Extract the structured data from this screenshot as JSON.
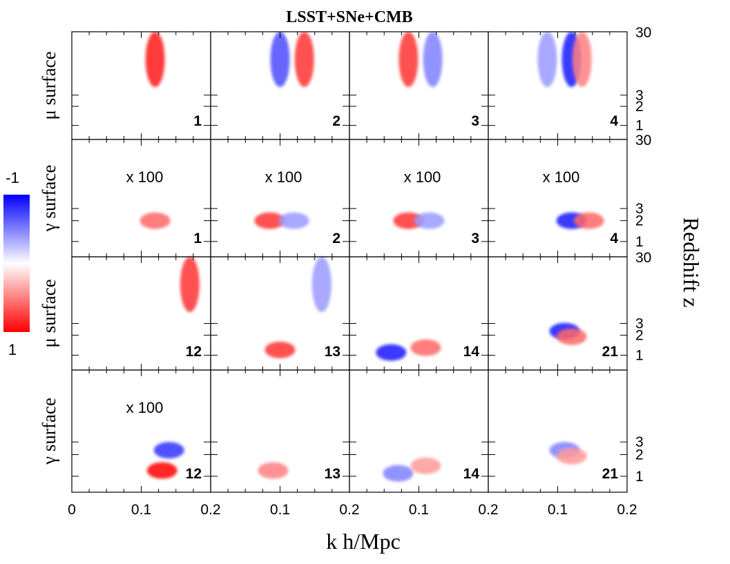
{
  "chart_data": {
    "type": "heatmap",
    "title": "LSST+SNe+CMB",
    "xlabel": "k h/Mpc",
    "ylabel_right": "Redshift z",
    "x_ticks": [
      "0",
      "0.1",
      "0.2",
      "0.1",
      "0.2",
      "0.1",
      "0.2",
      "0.1",
      "0.2"
    ],
    "panel_xlim": [
      0,
      0.2
    ],
    "y_tick_labels": [
      "30",
      "3",
      "2",
      "1"
    ],
    "y_ticks_z": [
      30,
      3,
      2,
      1
    ],
    "colorbar": {
      "min_label": "-1",
      "max_label": "1",
      "range": [
        -1,
        1
      ],
      "low_color": "#0000ff",
      "mid_color": "#ffffff",
      "high_color": "#ff0000"
    },
    "row_labels": [
      "μ surface",
      "γ surface",
      "μ surface",
      "γ surface"
    ],
    "rows": [
      {
        "surface": "μ",
        "panels": [
          {
            "mode": "1",
            "scale": "",
            "features": [
              {
                "k": 0.12,
                "z": 10,
                "amp": 0.9
              }
            ]
          },
          {
            "mode": "2",
            "scale": "",
            "features": [
              {
                "k": 0.1,
                "z": 10,
                "amp": -0.7
              },
              {
                "k": 0.135,
                "z": 10,
                "amp": 0.8
              }
            ]
          },
          {
            "mode": "3",
            "scale": "",
            "features": [
              {
                "k": 0.085,
                "z": 10,
                "amp": 0.8
              },
              {
                "k": 0.12,
                "z": 10,
                "amp": -0.5
              }
            ]
          },
          {
            "mode": "4",
            "scale": "",
            "features": [
              {
                "k": 0.085,
                "z": 10,
                "amp": -0.4
              },
              {
                "k": 0.12,
                "z": 10,
                "amp": -0.9
              },
              {
                "k": 0.135,
                "z": 10,
                "amp": 0.5
              }
            ]
          }
        ]
      },
      {
        "surface": "γ",
        "panels": [
          {
            "mode": "1",
            "scale": "x 100",
            "features": [
              {
                "k": 0.12,
                "z": 2,
                "amp": 0.6
              }
            ]
          },
          {
            "mode": "2",
            "scale": "x 100",
            "features": [
              {
                "k": 0.085,
                "z": 2,
                "amp": 0.8
              },
              {
                "k": 0.12,
                "z": 2,
                "amp": -0.4
              }
            ]
          },
          {
            "mode": "3",
            "scale": "x 100",
            "features": [
              {
                "k": 0.085,
                "z": 2,
                "amp": 0.8
              },
              {
                "k": 0.115,
                "z": 2,
                "amp": -0.4
              }
            ]
          },
          {
            "mode": "4",
            "scale": "x 100",
            "features": [
              {
                "k": 0.12,
                "z": 2,
                "amp": -0.9
              },
              {
                "k": 0.145,
                "z": 2,
                "amp": 0.6
              }
            ]
          }
        ]
      },
      {
        "surface": "μ",
        "panels": [
          {
            "mode": "12",
            "scale": "",
            "features": [
              {
                "k": 0.17,
                "z": 10,
                "amp": 0.8
              }
            ]
          },
          {
            "mode": "13",
            "scale": "",
            "features": [
              {
                "k": 0.1,
                "z": 1.2,
                "amp": 0.8
              },
              {
                "k": 0.16,
                "z": 10,
                "amp": -0.4
              }
            ]
          },
          {
            "mode": "14",
            "scale": "",
            "features": [
              {
                "k": 0.06,
                "z": 1.1,
                "amp": -0.9
              },
              {
                "k": 0.11,
                "z": 1.3,
                "amp": 0.6
              }
            ]
          },
          {
            "mode": "21",
            "scale": "",
            "features": [
              {
                "k": 0.11,
                "z": 2.3,
                "amp": -0.9
              },
              {
                "k": 0.12,
                "z": 1.9,
                "amp": 0.6
              }
            ]
          }
        ]
      },
      {
        "surface": "γ",
        "panels": [
          {
            "mode": "12",
            "scale": "x 100",
            "features": [
              {
                "k": 0.13,
                "z": 1.2,
                "amp": 1.0
              },
              {
                "k": 0.14,
                "z": 2.3,
                "amp": -0.8
              }
            ]
          },
          {
            "mode": "13",
            "scale": "",
            "features": [
              {
                "k": 0.09,
                "z": 1.2,
                "amp": 0.5
              }
            ]
          },
          {
            "mode": "14",
            "scale": "",
            "features": [
              {
                "k": 0.07,
                "z": 1.1,
                "amp": -0.5
              },
              {
                "k": 0.11,
                "z": 1.4,
                "amp": 0.4
              }
            ]
          },
          {
            "mode": "21",
            "scale": "",
            "features": [
              {
                "k": 0.11,
                "z": 2.3,
                "amp": -0.5
              },
              {
                "k": 0.12,
                "z": 1.9,
                "amp": 0.4
              }
            ]
          }
        ]
      }
    ]
  }
}
